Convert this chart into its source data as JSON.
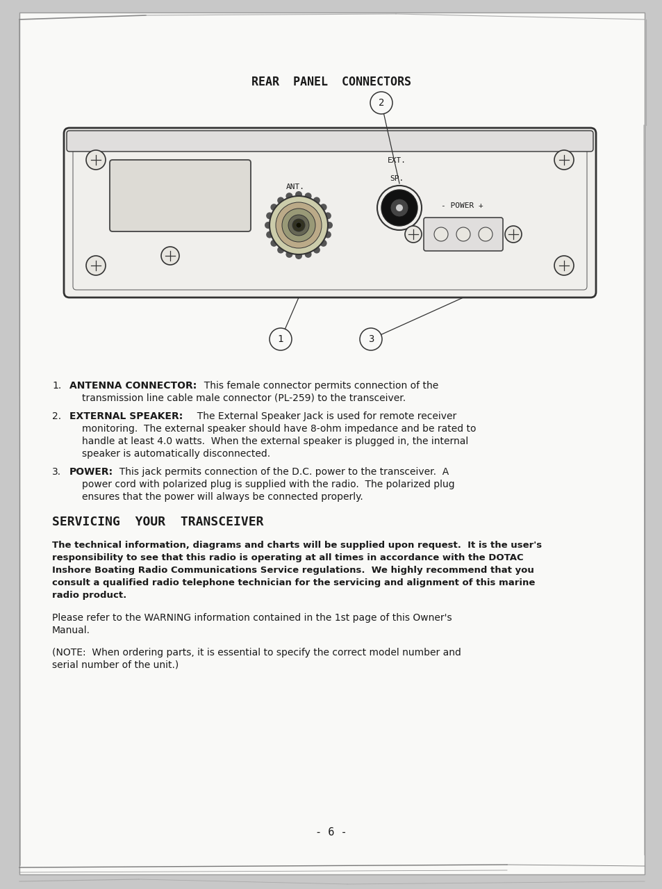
{
  "bg_color": "#c8c8c8",
  "page_color": "#f9f9f7",
  "title": "REAR  PANEL  CONNECTORS",
  "title_fontsize": 12,
  "section_title": "SERVICING  YOUR  TRANSCEIVER",
  "section_title_fontsize": 13,
  "page_number": "- 6 -",
  "text_color": "#1a1a1a",
  "line_color": "#333333",
  "panel_bg": "#f0efec",
  "screw_color": "#e8e6e0"
}
